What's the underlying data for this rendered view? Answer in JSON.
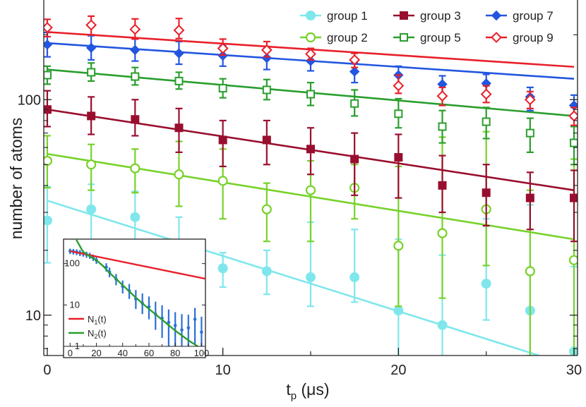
{
  "chart_data": [
    {
      "type": "scatter",
      "title": "",
      "xlabel": "t",
      "xlabel_sub": "p",
      "xlabel_unit": "(μs)",
      "ylabel": "number of atoms",
      "yscale": "log",
      "xlim": [
        -0.2,
        30.2
      ],
      "ylim": [
        6.5,
        290
      ],
      "x_ticks": [
        0,
        10,
        20,
        30
      ],
      "x_minor_ticks": [
        5,
        15,
        25
      ],
      "y_ticks": [
        10,
        100
      ],
      "grid": false,
      "legend": "top-right",
      "legend_layout": [
        "group 1",
        "group 3",
        "group 7",
        "group 2",
        "group 5",
        "group 9"
      ],
      "x": [
        0,
        2.5,
        5,
        7.5,
        10,
        12.5,
        15,
        17.5,
        20,
        22.5,
        25,
        27.5,
        30
      ],
      "series": [
        {
          "name": "group 1",
          "color": "#7fe7ec",
          "marker": "circle-filled",
          "values": [
            27.5,
            31,
            28.5,
            20.5,
            16.5,
            16,
            15,
            15,
            10.5,
            9,
            14,
            10.5,
            6.8
          ],
          "err_low": [
            10,
            9.5,
            8.5,
            20.5,
            3,
            3.5,
            4,
            3.5,
            10.5,
            9,
            4.5,
            4,
            6.8
          ],
          "err_high": [
            12,
            9.5,
            9,
            8,
            3,
            4,
            12,
            10,
            12,
            10,
            14,
            22,
            10
          ],
          "fit": [
            [
              0,
              34
            ],
            [
              28,
              6.5
            ]
          ]
        },
        {
          "name": "group 2",
          "color": "#77d22a",
          "marker": "circle-open",
          "values": [
            52,
            50,
            48,
            45,
            42,
            31,
            38,
            39,
            21,
            24,
            31,
            16,
            18
          ],
          "err_low": [
            13,
            12,
            11,
            13,
            14,
            9,
            16,
            11,
            10,
            12,
            14,
            16,
            18
          ],
          "err_high": [
            16,
            12,
            11,
            19,
            17,
            10,
            14,
            11,
            28,
            43,
            40,
            22,
            35
          ],
          "fit": [
            [
              0,
              56
            ],
            [
              30,
              22.5
            ]
          ]
        },
        {
          "name": "group 3",
          "color": "#990e2e",
          "marker": "square-filled",
          "values": [
            90,
            84,
            81,
            74,
            65,
            65,
            59,
            53,
            54,
            40,
            37,
            35,
            35
          ],
          "err_low": [
            15,
            15,
            13,
            17,
            16,
            15,
            14,
            17,
            19,
            10,
            11,
            10,
            13
          ],
          "err_high": [
            20,
            19,
            19,
            17,
            15,
            15,
            15,
            17,
            15,
            15,
            13,
            11,
            12
          ],
          "fit": [
            [
              0,
              90
            ],
            [
              30,
              38
            ]
          ]
        },
        {
          "name": "group 5",
          "color": "#2a9e2e",
          "marker": "square-open",
          "values": [
            130,
            134,
            128,
            122,
            113,
            111,
            106,
            96,
            86,
            75,
            79,
            70,
            63
          ],
          "err_low": [
            12,
            12,
            11,
            10,
            11,
            11,
            12,
            12,
            12,
            12,
            13,
            13,
            13
          ],
          "err_high": [
            13,
            14,
            13,
            12,
            12,
            13,
            14,
            15,
            15,
            14,
            13,
            12,
            12
          ],
          "fit": [
            [
              0,
              138
            ],
            [
              30,
              84
            ]
          ]
        },
        {
          "name": "group 7",
          "color": "#2356e0",
          "marker": "diamond-filled",
          "values": [
            180,
            174,
            170,
            164,
            160,
            156,
            151,
            135,
            130,
            118,
            119,
            103,
            94
          ],
          "err_low": [
            22,
            21,
            19,
            18,
            17,
            18,
            15,
            15,
            14,
            13,
            15,
            14,
            12
          ],
          "err_high": [
            25,
            24,
            22,
            22,
            18,
            17,
            14,
            13,
            13,
            11,
            12,
            11,
            11
          ],
          "fit": [
            [
              0,
              183
            ],
            [
              30,
              125
            ]
          ]
        },
        {
          "name": "group 9",
          "color": "#e8202a",
          "marker": "diamond-open",
          "values": [
            216,
            222,
            212,
            210,
            173,
            170,
            163,
            153,
            116,
            104,
            106,
            100,
            84
          ],
          "err_low": [
            20,
            22,
            21,
            18,
            12,
            12,
            10,
            12,
            9,
            10,
            9,
            9,
            8
          ],
          "err_high": [
            20,
            22,
            25,
            28,
            18,
            16,
            10,
            11,
            14,
            10,
            10,
            9,
            8
          ],
          "fit": [
            [
              0,
              206
            ],
            [
              30,
              142
            ]
          ]
        }
      ]
    },
    {
      "type": "line",
      "title": "",
      "xlabel": "",
      "ylabel": "",
      "yscale": "log",
      "xlim": [
        -5,
        103
      ],
      "ylim": [
        1,
        390
      ],
      "x_ticks": [
        0,
        20,
        40,
        60,
        80,
        100
      ],
      "x_minor_ticks": [
        10,
        30,
        50,
        70,
        90
      ],
      "y_ticks": [
        1,
        10,
        100
      ],
      "legend": "bottom-left",
      "series": [
        {
          "name": "N",
          "name_sub": "1",
          "name_tail": "(t)",
          "color": "#e8202a",
          "points": [
            [
              0,
              200
            ],
            [
              103,
              43
            ]
          ]
        },
        {
          "name": "N",
          "name_sub": "2",
          "name_tail": "(t)",
          "color": "#2a9e2e",
          "points": [
            [
              3,
              470
            ],
            [
              10,
              190
            ],
            [
              15,
              150
            ],
            [
              20,
              120
            ],
            [
              25,
              88
            ],
            [
              30,
              60
            ],
            [
              40,
              30
            ],
            [
              50,
              15
            ],
            [
              60,
              8
            ],
            [
              70,
              4.4
            ],
            [
              80,
              2.4
            ],
            [
              90,
              1.4
            ],
            [
              103,
              0.75
            ]
          ]
        }
      ],
      "data": {
        "color": "#2a70d8",
        "x": [
          0,
          2.5,
          5,
          7.5,
          10,
          12.5,
          15,
          17.5,
          20,
          27.5,
          30,
          35,
          40,
          45,
          50,
          55,
          60,
          65,
          70,
          75,
          80,
          85,
          90,
          95,
          100
        ],
        "values": [
          200,
          195,
          190,
          182,
          175,
          165,
          155,
          140,
          120,
          82,
          62,
          42,
          28,
          22,
          14,
          11,
          9,
          6,
          4.8,
          3.8,
          3.2,
          2.5,
          2.8,
          4.5,
          2.2
        ],
        "err_low": [
          30,
          30,
          30,
          30,
          28,
          27,
          25,
          24,
          22,
          18,
          15,
          12,
          9,
          8,
          6,
          5,
          4.5,
          3.5,
          3.2,
          2.8,
          2.2,
          1.5,
          1.8,
          3.4,
          1.2
        ],
        "err_high": [
          30,
          30,
          30,
          30,
          30,
          28,
          27,
          26,
          24,
          20,
          18,
          14,
          11,
          10,
          9,
          8,
          7,
          6,
          5,
          4,
          3.5,
          3.5,
          3,
          4,
          3
        ]
      }
    }
  ]
}
